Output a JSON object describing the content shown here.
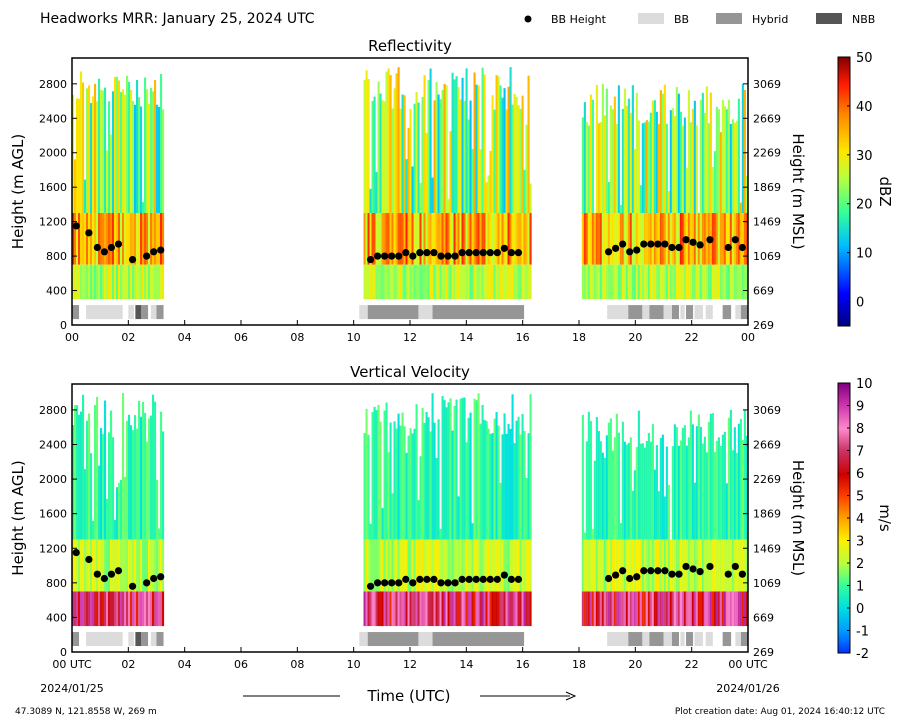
{
  "header": {
    "title": "Headworks MRR:  January 25, 2024 UTC",
    "legend": [
      {
        "label": "BB Height",
        "kind": "dot",
        "color": "#000000"
      },
      {
        "label": "BB",
        "kind": "swatch",
        "color": "#dcdcdc"
      },
      {
        "label": "Hybrid",
        "kind": "swatch",
        "color": "#969696"
      },
      {
        "label": "NBB",
        "kind": "swatch",
        "color": "#555555"
      }
    ]
  },
  "footer": {
    "location": "47.3089 N, 121.8558 W, 269 m",
    "creation": "Plot creation date: Aug 01, 2024 16:40:12 UTC",
    "xlabel": "Time (UTC)",
    "start_date": "2024/01/25",
    "end_date": "2024/01/26"
  },
  "chart_data": [
    {
      "type": "heatmap",
      "title": "Reflectivity",
      "ylabel": "Height (m AGL)",
      "ylabel_right": "Height (m MSL)",
      "xlim": [
        0,
        24
      ],
      "ylim": [
        0,
        3100
      ],
      "x_ticks": [
        "00",
        "02",
        "04",
        "06",
        "08",
        "10",
        "12",
        "14",
        "16",
        "18",
        "20",
        "22",
        "00"
      ],
      "y_ticks": [
        0,
        400,
        800,
        1200,
        1600,
        2000,
        2400,
        2800
      ],
      "y_ticks_right": [
        269,
        669,
        1069,
        1469,
        1869,
        2269,
        2669,
        3069
      ],
      "colorbar": {
        "label": "dBZ",
        "min": -5,
        "max": 50,
        "ticks": [
          0,
          10,
          20,
          30,
          40,
          50
        ]
      },
      "echo_periods": [
        {
          "start": 0.0,
          "end": 3.2,
          "top": 3000,
          "base": 300
        },
        {
          "start": 10.35,
          "end": 16.3,
          "top": 3000,
          "base": 300
        },
        {
          "start": 18.1,
          "end": 24.0,
          "top": 2800,
          "base": 300
        }
      ],
      "bb_height": {
        "name": "BB Height",
        "x": [
          0.15,
          0.6,
          0.9,
          1.15,
          1.4,
          1.65,
          2.15,
          2.65,
          2.9,
          3.15,
          10.6,
          10.85,
          11.1,
          11.35,
          11.6,
          11.85,
          12.1,
          12.35,
          12.6,
          12.85,
          13.1,
          13.35,
          13.6,
          13.85,
          14.1,
          14.35,
          14.6,
          14.85,
          15.1,
          15.35,
          15.6,
          15.85,
          19.05,
          19.3,
          19.55,
          19.8,
          20.05,
          20.3,
          20.55,
          20.8,
          21.05,
          21.3,
          21.55,
          21.8,
          22.05,
          22.3,
          22.65,
          23.3,
          23.55,
          23.8
        ],
        "y": [
          1150,
          1070,
          900,
          850,
          900,
          940,
          760,
          800,
          850,
          870,
          760,
          800,
          800,
          800,
          800,
          840,
          800,
          840,
          840,
          840,
          800,
          800,
          800,
          840,
          840,
          840,
          840,
          840,
          840,
          890,
          840,
          840,
          850,
          890,
          940,
          850,
          870,
          940,
          940,
          940,
          940,
          900,
          900,
          990,
          960,
          930,
          990,
          900,
          990,
          900
        ]
      },
      "bb_type_bar": [
        {
          "start": 0.0,
          "end": 0.25,
          "type": "Hybrid"
        },
        {
          "start": 0.5,
          "end": 1.8,
          "type": "BB"
        },
        {
          "start": 2.0,
          "end": 2.2,
          "type": "BB"
        },
        {
          "start": 2.25,
          "end": 2.45,
          "type": "NBB"
        },
        {
          "start": 2.45,
          "end": 2.7,
          "type": "Hybrid"
        },
        {
          "start": 2.8,
          "end": 3.0,
          "type": "BB"
        },
        {
          "start": 3.0,
          "end": 3.25,
          "type": "Hybrid"
        },
        {
          "start": 10.2,
          "end": 10.5,
          "type": "BB"
        },
        {
          "start": 10.5,
          "end": 12.3,
          "type": "Hybrid"
        },
        {
          "start": 12.3,
          "end": 12.8,
          "type": "BB"
        },
        {
          "start": 12.8,
          "end": 16.05,
          "type": "Hybrid"
        },
        {
          "start": 19.0,
          "end": 19.75,
          "type": "BB"
        },
        {
          "start": 19.75,
          "end": 20.25,
          "type": "Hybrid"
        },
        {
          "start": 20.25,
          "end": 20.5,
          "type": "BB"
        },
        {
          "start": 20.5,
          "end": 21.0,
          "type": "Hybrid"
        },
        {
          "start": 21.0,
          "end": 21.3,
          "type": "BB"
        },
        {
          "start": 21.3,
          "end": 21.55,
          "type": "Hybrid"
        },
        {
          "start": 21.6,
          "end": 21.75,
          "type": "BB"
        },
        {
          "start": 21.8,
          "end": 22.05,
          "type": "Hybrid"
        },
        {
          "start": 22.1,
          "end": 22.4,
          "type": "BB"
        },
        {
          "start": 22.5,
          "end": 22.75,
          "type": "BB"
        },
        {
          "start": 23.1,
          "end": 23.4,
          "type": "Hybrid"
        },
        {
          "start": 23.55,
          "end": 23.75,
          "type": "BB"
        },
        {
          "start": 23.75,
          "end": 24.0,
          "type": "Hybrid"
        }
      ]
    },
    {
      "type": "heatmap",
      "title": "Vertical Velocity",
      "ylabel": "Height (m AGL)",
      "ylabel_right": "Height (m MSL)",
      "xlim": [
        0,
        24
      ],
      "ylim": [
        0,
        3100
      ],
      "x_ticks": [
        "00 UTC",
        "02",
        "04",
        "06",
        "08",
        "10",
        "12",
        "14",
        "16",
        "18",
        "20",
        "22",
        "00 UTC"
      ],
      "y_ticks": [
        0,
        400,
        800,
        1200,
        1600,
        2000,
        2400,
        2800
      ],
      "y_ticks_right": [
        269,
        669,
        1069,
        1469,
        1869,
        2269,
        2669,
        3069
      ],
      "colorbar": {
        "label": "m/s",
        "min": -2,
        "max": 10,
        "ticks": [
          -2,
          -1,
          0,
          1,
          2,
          3,
          4,
          5,
          6,
          7,
          8,
          9,
          10
        ]
      },
      "echo_periods": [
        {
          "start": 0.0,
          "end": 3.2,
          "top": 3000,
          "base": 300
        },
        {
          "start": 10.35,
          "end": 16.3,
          "top": 3000,
          "base": 300
        },
        {
          "start": 18.1,
          "end": 24.0,
          "top": 2800,
          "base": 300
        }
      ],
      "bb_height": {
        "name": "BB Height",
        "x": [
          0.15,
          0.6,
          0.9,
          1.15,
          1.4,
          1.65,
          2.15,
          2.65,
          2.9,
          3.15,
          10.6,
          10.85,
          11.1,
          11.35,
          11.6,
          11.85,
          12.1,
          12.35,
          12.6,
          12.85,
          13.1,
          13.35,
          13.6,
          13.85,
          14.1,
          14.35,
          14.6,
          14.85,
          15.1,
          15.35,
          15.6,
          15.85,
          19.05,
          19.3,
          19.55,
          19.8,
          20.05,
          20.3,
          20.55,
          20.8,
          21.05,
          21.3,
          21.55,
          21.8,
          22.05,
          22.3,
          22.65,
          23.3,
          23.55,
          23.8
        ],
        "y": [
          1150,
          1070,
          900,
          850,
          900,
          940,
          760,
          800,
          850,
          870,
          760,
          800,
          800,
          800,
          800,
          840,
          800,
          840,
          840,
          840,
          800,
          800,
          800,
          840,
          840,
          840,
          840,
          840,
          840,
          890,
          840,
          840,
          850,
          890,
          940,
          850,
          870,
          940,
          940,
          940,
          940,
          900,
          900,
          990,
          960,
          930,
          990,
          900,
          990,
          900
        ]
      },
      "bb_type_bar": [
        {
          "start": 0.0,
          "end": 0.25,
          "type": "Hybrid"
        },
        {
          "start": 0.5,
          "end": 1.8,
          "type": "BB"
        },
        {
          "start": 2.0,
          "end": 2.2,
          "type": "BB"
        },
        {
          "start": 2.25,
          "end": 2.45,
          "type": "NBB"
        },
        {
          "start": 2.45,
          "end": 2.7,
          "type": "Hybrid"
        },
        {
          "start": 2.8,
          "end": 3.0,
          "type": "BB"
        },
        {
          "start": 3.0,
          "end": 3.25,
          "type": "Hybrid"
        },
        {
          "start": 10.2,
          "end": 10.5,
          "type": "BB"
        },
        {
          "start": 10.5,
          "end": 12.3,
          "type": "Hybrid"
        },
        {
          "start": 12.3,
          "end": 12.8,
          "type": "BB"
        },
        {
          "start": 12.8,
          "end": 16.05,
          "type": "Hybrid"
        },
        {
          "start": 19.0,
          "end": 19.75,
          "type": "BB"
        },
        {
          "start": 19.75,
          "end": 20.25,
          "type": "Hybrid"
        },
        {
          "start": 20.25,
          "end": 20.5,
          "type": "BB"
        },
        {
          "start": 20.5,
          "end": 21.0,
          "type": "Hybrid"
        },
        {
          "start": 21.0,
          "end": 21.3,
          "type": "BB"
        },
        {
          "start": 21.3,
          "end": 21.55,
          "type": "Hybrid"
        },
        {
          "start": 21.6,
          "end": 21.75,
          "type": "BB"
        },
        {
          "start": 21.8,
          "end": 22.05,
          "type": "Hybrid"
        },
        {
          "start": 22.1,
          "end": 22.4,
          "type": "BB"
        },
        {
          "start": 22.5,
          "end": 22.75,
          "type": "BB"
        },
        {
          "start": 23.1,
          "end": 23.4,
          "type": "Hybrid"
        },
        {
          "start": 23.55,
          "end": 23.75,
          "type": "BB"
        },
        {
          "start": 23.75,
          "end": 24.0,
          "type": "Hybrid"
        }
      ]
    }
  ]
}
